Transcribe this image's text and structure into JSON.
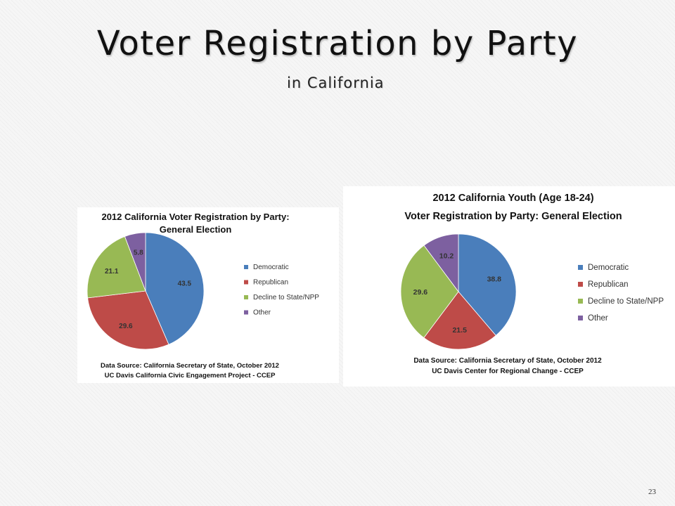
{
  "slide": {
    "title": "Voter Registration by Party",
    "subtitle": "in California",
    "page_number": "23"
  },
  "chart_data": [
    {
      "type": "pie",
      "title_lines": [
        "2012 California Voter Registration by Party:",
        "General Election"
      ],
      "categories": [
        "Democratic",
        "Republican",
        "Decline to State/NPP",
        "Other"
      ],
      "values": [
        43.5,
        29.6,
        21.1,
        5.8
      ],
      "colors": [
        "#4a7ebb",
        "#be4b48",
        "#98b954",
        "#7d60a0"
      ],
      "legend_position": "right",
      "source_lines": [
        "Data Source: California Secretary of State, October 2012",
        "UC Davis California Civic Engagement Project - CCEP"
      ]
    },
    {
      "type": "pie",
      "title_lines": [
        "2012 California Youth (Age 18-24)",
        "Voter Registration by Party: General Election"
      ],
      "categories": [
        "Democratic",
        "Republican",
        "Decline to State/NPP",
        "Other"
      ],
      "values": [
        38.8,
        21.5,
        29.6,
        10.2
      ],
      "colors": [
        "#4a7ebb",
        "#be4b48",
        "#98b954",
        "#7d60a0"
      ],
      "legend_position": "right",
      "source_lines": [
        "Data Source: California Secretary of State, October 2012",
        "UC Davis Center for Regional Change - CCEP"
      ]
    }
  ]
}
